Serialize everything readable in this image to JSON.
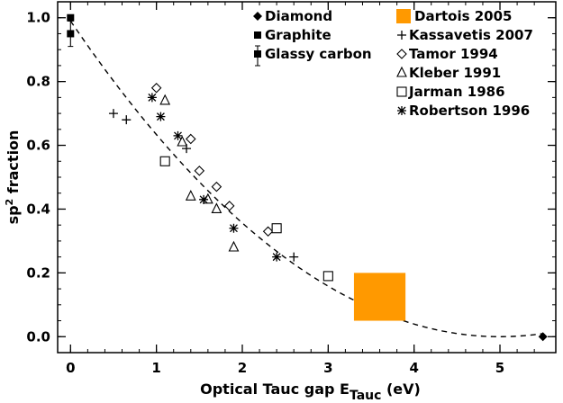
{
  "chart_data": {
    "type": "scatter",
    "xlabel_main": "Optical Tauc gap E",
    "xlabel_sub": "Tauc",
    "xlabel_unit": "(eV)",
    "ylabel_pre": "sp",
    "ylabel_sup": "2",
    "ylabel_post": " fraction",
    "xlim": [
      -0.15,
      5.65
    ],
    "ylim": [
      -0.05,
      1.05
    ],
    "xticks": [
      0,
      1,
      2,
      3,
      4,
      5
    ],
    "xtick_labels": [
      "0",
      "1",
      "2",
      "3",
      "4",
      "5"
    ],
    "yticks": [
      0.0,
      0.2,
      0.4,
      0.6,
      0.8,
      1.0
    ],
    "ytick_labels": [
      "0.0",
      "0.2",
      "0.4",
      "0.6",
      "0.8",
      "1.0"
    ],
    "accent_color": "#ff9900",
    "fit_curve": {
      "style": "dashed",
      "x_start": 0,
      "x_end": 5.5,
      "y_start": 0.99,
      "vertex_x": 5.0,
      "vertex_y": 0.0
    },
    "series": [
      {
        "name": "Diamond",
        "marker": "filled-diamond",
        "points": [
          [
            5.5,
            0.0
          ]
        ]
      },
      {
        "name": "Graphite",
        "marker": "filled-square",
        "points": [
          [
            0.0,
            1.0
          ]
        ]
      },
      {
        "name": "Glassy carbon",
        "marker": "filled-square-errorbar",
        "points": [
          [
            0.0,
            0.95,
            0.04
          ]
        ]
      },
      {
        "name": "Dartois 2005",
        "marker": "rect",
        "rect": {
          "x": [
            3.3,
            3.9
          ],
          "y": [
            0.05,
            0.2
          ]
        }
      },
      {
        "name": "Kassavetis 2007",
        "marker": "plus",
        "points": [
          [
            0.5,
            0.7
          ],
          [
            0.65,
            0.68
          ],
          [
            1.35,
            0.59
          ],
          [
            2.6,
            0.25
          ]
        ]
      },
      {
        "name": "Tamor 1994",
        "marker": "open-diamond",
        "points": [
          [
            1.0,
            0.78
          ],
          [
            1.4,
            0.62
          ],
          [
            1.5,
            0.52
          ],
          [
            1.7,
            0.47
          ],
          [
            1.85,
            0.41
          ],
          [
            2.3,
            0.33
          ]
        ]
      },
      {
        "name": "Kleber 1991",
        "marker": "open-triangle",
        "points": [
          [
            1.1,
            0.74
          ],
          [
            1.3,
            0.61
          ],
          [
            1.4,
            0.44
          ],
          [
            1.6,
            0.43
          ],
          [
            1.7,
            0.4
          ],
          [
            1.9,
            0.28
          ]
        ]
      },
      {
        "name": "Jarman 1986",
        "marker": "open-square",
        "points": [
          [
            1.1,
            0.55
          ],
          [
            2.4,
            0.34
          ],
          [
            3.0,
            0.19
          ]
        ]
      },
      {
        "name": "Robertson 1996",
        "marker": "asterisk",
        "points": [
          [
            0.95,
            0.75
          ],
          [
            1.05,
            0.69
          ],
          [
            1.25,
            0.63
          ],
          [
            1.55,
            0.43
          ],
          [
            1.9,
            0.34
          ],
          [
            2.4,
            0.25
          ]
        ]
      }
    ]
  }
}
